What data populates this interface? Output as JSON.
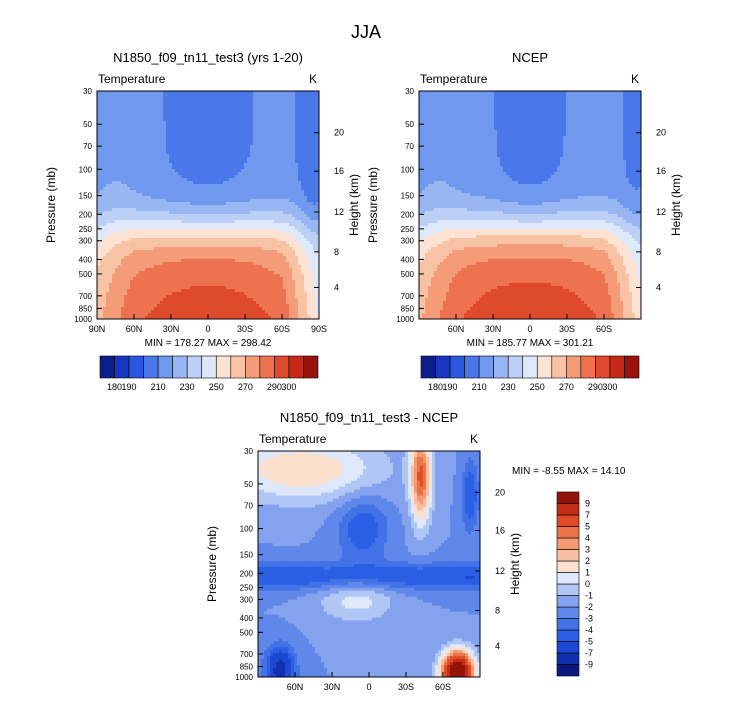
{
  "figure": {
    "title": "JJA"
  },
  "chart_data": [
    {
      "type": "heatmap",
      "title": "N1850_f09_tn11_test3 (yrs 1-20)",
      "left_label": "Temperature",
      "right_label": "K",
      "ylabel": "Pressure (mb)",
      "ylabel_right": "Height (km)",
      "x": {
        "ticks": [
          90,
          60,
          30,
          0,
          -30,
          -60,
          -90
        ],
        "tick_labels": [
          "90N",
          "60N",
          "30N",
          "0",
          "30S",
          "60S",
          "90S"
        ],
        "range": [
          90,
          -90
        ]
      },
      "y": {
        "ticks": [
          30,
          50,
          70,
          100,
          150,
          200,
          250,
          300,
          400,
          500,
          700,
          850,
          1000
        ],
        "tick_labels": [
          "30",
          "50",
          "70",
          "100",
          "150",
          "200",
          "250",
          "300",
          "400",
          "500",
          "700",
          "850",
          "1000"
        ],
        "scale": "log",
        "range": [
          1000,
          30
        ]
      },
      "height_ticks": [
        {
          "label": "20",
          "p": 57
        },
        {
          "label": "16",
          "p": 103
        },
        {
          "label": "12",
          "p": 193
        },
        {
          "label": "8",
          "p": 356
        },
        {
          "label": "4",
          "p": 616
        }
      ],
      "stats": "MIN = 178.27  MAX = 298.42",
      "colorbar": {
        "orientation": "horizontal",
        "levels": [
          180,
          190,
          200,
          210,
          220,
          230,
          240,
          250,
          260,
          270,
          280,
          290,
          300
        ],
        "tick_labels": [
          "180",
          "190",
          "210",
          "230",
          "250",
          "270",
          "290",
          "300"
        ],
        "colors": [
          "#0a1e8c",
          "#1838c0",
          "#2a56e0",
          "#4a78ea",
          "#7098ee",
          "#98b6f2",
          "#bcd0f6",
          "#dde8fa",
          "#fbe2d2",
          "#f8c2a4",
          "#f49c78",
          "#ee7250",
          "#e04a2c",
          "#c52a18",
          "#96140c"
        ]
      },
      "field_id": "model"
    },
    {
      "type": "heatmap",
      "title": "NCEP",
      "left_label": "Temperature",
      "right_label": "K",
      "ylabel": "Pressure (mb)",
      "ylabel_right": "Height (km)",
      "x": {
        "ticks": [
          60,
          30,
          0,
          -30,
          -60
        ],
        "tick_labels": [
          "60N",
          "30N",
          "0",
          "30S",
          "60S"
        ],
        "range": [
          90,
          -90
        ]
      },
      "y": {
        "ticks": [
          30,
          50,
          70,
          100,
          150,
          200,
          250,
          300,
          400,
          500,
          700,
          850,
          1000
        ],
        "tick_labels": [
          "30",
          "50",
          "70",
          "100",
          "150",
          "200",
          "250",
          "300",
          "400",
          "500",
          "700",
          "850",
          "1000"
        ],
        "scale": "log",
        "range": [
          1000,
          30
        ]
      },
      "height_ticks": [
        {
          "label": "20",
          "p": 57
        },
        {
          "label": "16",
          "p": 103
        },
        {
          "label": "12",
          "p": 193
        },
        {
          "label": "8",
          "p": 356
        },
        {
          "label": "4",
          "p": 616
        }
      ],
      "stats": "MIN = 185.77  MAX = 301.21",
      "colorbar": {
        "orientation": "horizontal",
        "levels": [
          180,
          190,
          200,
          210,
          220,
          230,
          240,
          250,
          260,
          270,
          280,
          290,
          300
        ],
        "tick_labels": [
          "180",
          "190",
          "210",
          "230",
          "250",
          "270",
          "290",
          "300"
        ],
        "colors": [
          "#0a1e8c",
          "#1838c0",
          "#2a56e0",
          "#4a78ea",
          "#7098ee",
          "#98b6f2",
          "#bcd0f6",
          "#dde8fa",
          "#fbe2d2",
          "#f8c2a4",
          "#f49c78",
          "#ee7250",
          "#e04a2c",
          "#c52a18",
          "#96140c"
        ]
      },
      "field_id": "ncep"
    },
    {
      "type": "heatmap",
      "title": "N1850_f09_tn11_test3 - NCEP",
      "left_label": "Temperature",
      "right_label": "K",
      "ylabel": "Pressure (mb)",
      "ylabel_right": "Height (km)",
      "x": {
        "ticks": [
          60,
          30,
          0,
          -30,
          -60
        ],
        "tick_labels": [
          "60N",
          "30N",
          "0",
          "30S",
          "60S"
        ],
        "range": [
          90,
          -90
        ]
      },
      "y": {
        "ticks": [
          30,
          50,
          70,
          100,
          150,
          200,
          250,
          300,
          400,
          500,
          700,
          850,
          1000
        ],
        "tick_labels": [
          "30",
          "50",
          "70",
          "100",
          "150",
          "200",
          "250",
          "300",
          "400",
          "500",
          "700",
          "850",
          "1000"
        ],
        "scale": "log",
        "range": [
          1000,
          30
        ]
      },
      "height_ticks": [
        {
          "label": "20",
          "p": 57
        },
        {
          "label": "16",
          "p": 103
        },
        {
          "label": "12",
          "p": 193
        },
        {
          "label": "8",
          "p": 356
        },
        {
          "label": "4",
          "p": 616
        }
      ],
      "stats": "MIN =  -8.55  MAX =  14.10",
      "colorbar": {
        "orientation": "vertical",
        "levels": [
          -9,
          -7,
          -5,
          -4,
          -3,
          -2,
          -1,
          0,
          1,
          2,
          3,
          4,
          5,
          7,
          9
        ],
        "tick_labels": [
          "-9",
          "-7",
          "-5",
          "-4",
          "-3",
          "-2",
          "-1",
          "0",
          "1",
          "2",
          "3",
          "4",
          "5",
          "7",
          "9"
        ],
        "colors": [
          "#081880",
          "#1030b0",
          "#1c48d4",
          "#2a5ee4",
          "#4272e6",
          "#6088ea",
          "#84a2ee",
          "#b0c6f4",
          "#dde8fa",
          "#fbe0ce",
          "#f8c0a0",
          "#f49a72",
          "#ee7248",
          "#e04c26",
          "#c42c14",
          "#94140a"
        ]
      },
      "field_id": "diff"
    }
  ]
}
